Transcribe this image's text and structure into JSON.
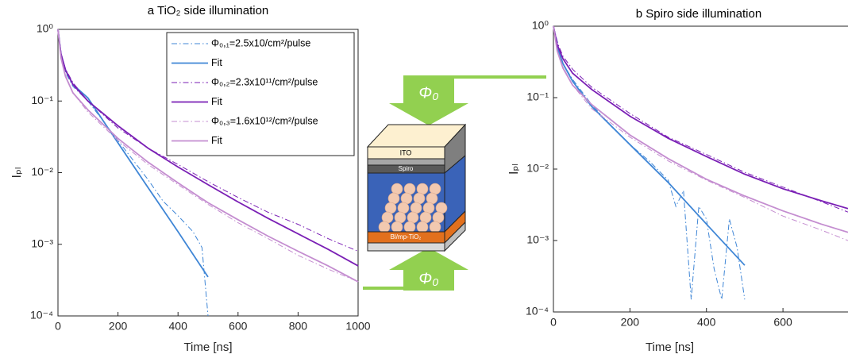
{
  "chart_data": [
    {
      "type": "line",
      "title": "a TiO₂ side illumination",
      "xlabel": "Time [ns]",
      "ylabel": "Iₚₗ",
      "yscale": "log",
      "xlim": [
        0,
        1000
      ],
      "xticks": [
        0,
        200,
        400,
        600,
        800,
        1000
      ],
      "ylim": [
        0.0001,
        1
      ],
      "yticks": [
        {
          "value": 0.0001,
          "label": "10⁻⁴"
        },
        {
          "value": 0.001,
          "label": "10⁻³"
        },
        {
          "value": 0.01,
          "label": "10⁻²"
        },
        {
          "value": 0.1,
          "label": "10⁻¹"
        },
        {
          "value": 1,
          "label": "10⁰"
        }
      ],
      "legend": "upper right",
      "series": [
        {
          "name": "Φ₀,₁=2.5x10/cm²/pulse",
          "color": "#3f86d6",
          "style": "dashdot",
          "x": [
            0,
            10,
            25,
            50,
            100,
            200,
            300,
            350,
            400,
            450,
            480,
            500
          ],
          "values": [
            1,
            0.42,
            0.25,
            0.16,
            0.1,
            0.028,
            0.008,
            0.004,
            0.0025,
            0.0015,
            0.0009,
            0.0001
          ]
        },
        {
          "name": "Fit",
          "color": "#3f86d6",
          "style": "solid",
          "x": [
            0,
            10,
            25,
            50,
            100,
            200,
            300,
            400,
            500
          ],
          "values": [
            1,
            0.45,
            0.27,
            0.17,
            0.11,
            0.026,
            0.0062,
            0.0015,
            0.00035
          ]
        },
        {
          "name": "Φ₀,₂=2.3x10¹¹/cm²/pulse",
          "color": "#7a1fb5",
          "style": "dashdot",
          "x": [
            0,
            10,
            25,
            50,
            100,
            200,
            300,
            400,
            500,
            600,
            700,
            800,
            900,
            1000
          ],
          "values": [
            1,
            0.47,
            0.28,
            0.18,
            0.1,
            0.042,
            0.022,
            0.013,
            0.0075,
            0.0045,
            0.0028,
            0.0019,
            0.0012,
            0.0008
          ]
        },
        {
          "name": "Fit",
          "color": "#7a1fb5",
          "style": "solid",
          "x": [
            0,
            10,
            25,
            50,
            100,
            200,
            300,
            400,
            500,
            600,
            700,
            800,
            900,
            1000
          ],
          "values": [
            1,
            0.45,
            0.27,
            0.17,
            0.1,
            0.045,
            0.022,
            0.012,
            0.0068,
            0.0039,
            0.0023,
            0.0014,
            0.00085,
            0.0005
          ]
        },
        {
          "name": "Φ₀,₃=1.6x10¹²/cm²/pulse",
          "color": "#c48dd0",
          "style": "dashdot",
          "x": [
            0,
            10,
            25,
            50,
            100,
            200,
            300,
            400,
            500,
            600,
            700,
            800,
            900,
            1000
          ],
          "values": [
            1,
            0.42,
            0.23,
            0.13,
            0.07,
            0.028,
            0.013,
            0.0068,
            0.0036,
            0.002,
            0.0012,
            0.0007,
            0.00045,
            0.0003
          ]
        },
        {
          "name": "Fit",
          "color": "#c48dd0",
          "style": "solid",
          "x": [
            0,
            10,
            25,
            50,
            100,
            200,
            300,
            400,
            500,
            600,
            700,
            800,
            900,
            1000
          ],
          "values": [
            1,
            0.4,
            0.22,
            0.13,
            0.075,
            0.03,
            0.014,
            0.0072,
            0.0038,
            0.0022,
            0.0013,
            0.0008,
            0.0005,
            0.0003
          ]
        }
      ]
    },
    {
      "type": "line",
      "title": "b Spiro side illumination",
      "xlabel": "Time [ns]",
      "ylabel": "Iₚₗ",
      "yscale": "log",
      "xlim": [
        0,
        770
      ],
      "xticks": [
        0,
        200,
        400,
        600
      ],
      "ylim": [
        0.0001,
        1
      ],
      "yticks": [
        {
          "value": 0.0001,
          "label": "10⁻⁴"
        },
        {
          "value": 0.001,
          "label": "10⁻³"
        },
        {
          "value": 0.01,
          "label": "10⁻²"
        },
        {
          "value": 0.1,
          "label": "10⁻¹"
        },
        {
          "value": 1,
          "label": "10⁰"
        }
      ],
      "series": [
        {
          "color": "#3f86d6",
          "style": "dashdot",
          "x": [
            0,
            25,
            50,
            100,
            150,
            200,
            250,
            300,
            320,
            340,
            360,
            380,
            400,
            420,
            440,
            460,
            480,
            500
          ],
          "values": [
            1,
            0.3,
            0.18,
            0.08,
            0.04,
            0.022,
            0.013,
            0.007,
            0.003,
            0.005,
            0.00015,
            0.003,
            0.002,
            0.0004,
            0.00015,
            0.002,
            0.0008,
            0.00015
          ]
        },
        {
          "color": "#3f86d6",
          "style": "solid",
          "x": [
            0,
            10,
            25,
            50,
            100,
            200,
            300,
            400,
            500
          ],
          "values": [
            1,
            0.5,
            0.3,
            0.17,
            0.075,
            0.022,
            0.0065,
            0.0017,
            0.00045
          ]
        },
        {
          "color": "#7a1fb5",
          "style": "dashdot",
          "x": [
            0,
            10,
            25,
            50,
            100,
            200,
            300,
            400,
            500,
            600,
            700,
            770
          ],
          "values": [
            1,
            0.6,
            0.38,
            0.25,
            0.14,
            0.06,
            0.028,
            0.016,
            0.009,
            0.0056,
            0.0035,
            0.0025
          ]
        },
        {
          "color": "#7a1fb5",
          "style": "solid",
          "x": [
            0,
            10,
            25,
            50,
            100,
            200,
            300,
            400,
            500,
            600,
            700,
            770
          ],
          "values": [
            1,
            0.55,
            0.35,
            0.22,
            0.13,
            0.055,
            0.027,
            0.015,
            0.0085,
            0.0053,
            0.0036,
            0.0028
          ]
        },
        {
          "color": "#c48dd0",
          "style": "dashdot",
          "x": [
            0,
            10,
            25,
            50,
            100,
            200,
            300,
            400,
            500,
            600,
            700,
            770
          ],
          "values": [
            1,
            0.45,
            0.27,
            0.15,
            0.07,
            0.028,
            0.013,
            0.007,
            0.004,
            0.0022,
            0.0014,
            0.001
          ]
        },
        {
          "color": "#c48dd0",
          "style": "solid",
          "x": [
            0,
            10,
            25,
            50,
            100,
            200,
            300,
            400,
            500,
            600,
            700,
            770
          ],
          "values": [
            1,
            0.45,
            0.26,
            0.15,
            0.08,
            0.03,
            0.014,
            0.0072,
            0.0042,
            0.0026,
            0.0017,
            0.0013
          ]
        }
      ]
    }
  ],
  "diagram": {
    "layers": {
      "top": "ITO",
      "middle": "Spiro",
      "bottom": "Bl/mp-TiO₂"
    },
    "arrows": {
      "top": "Φ₀",
      "bottom": "Φ₀"
    }
  }
}
